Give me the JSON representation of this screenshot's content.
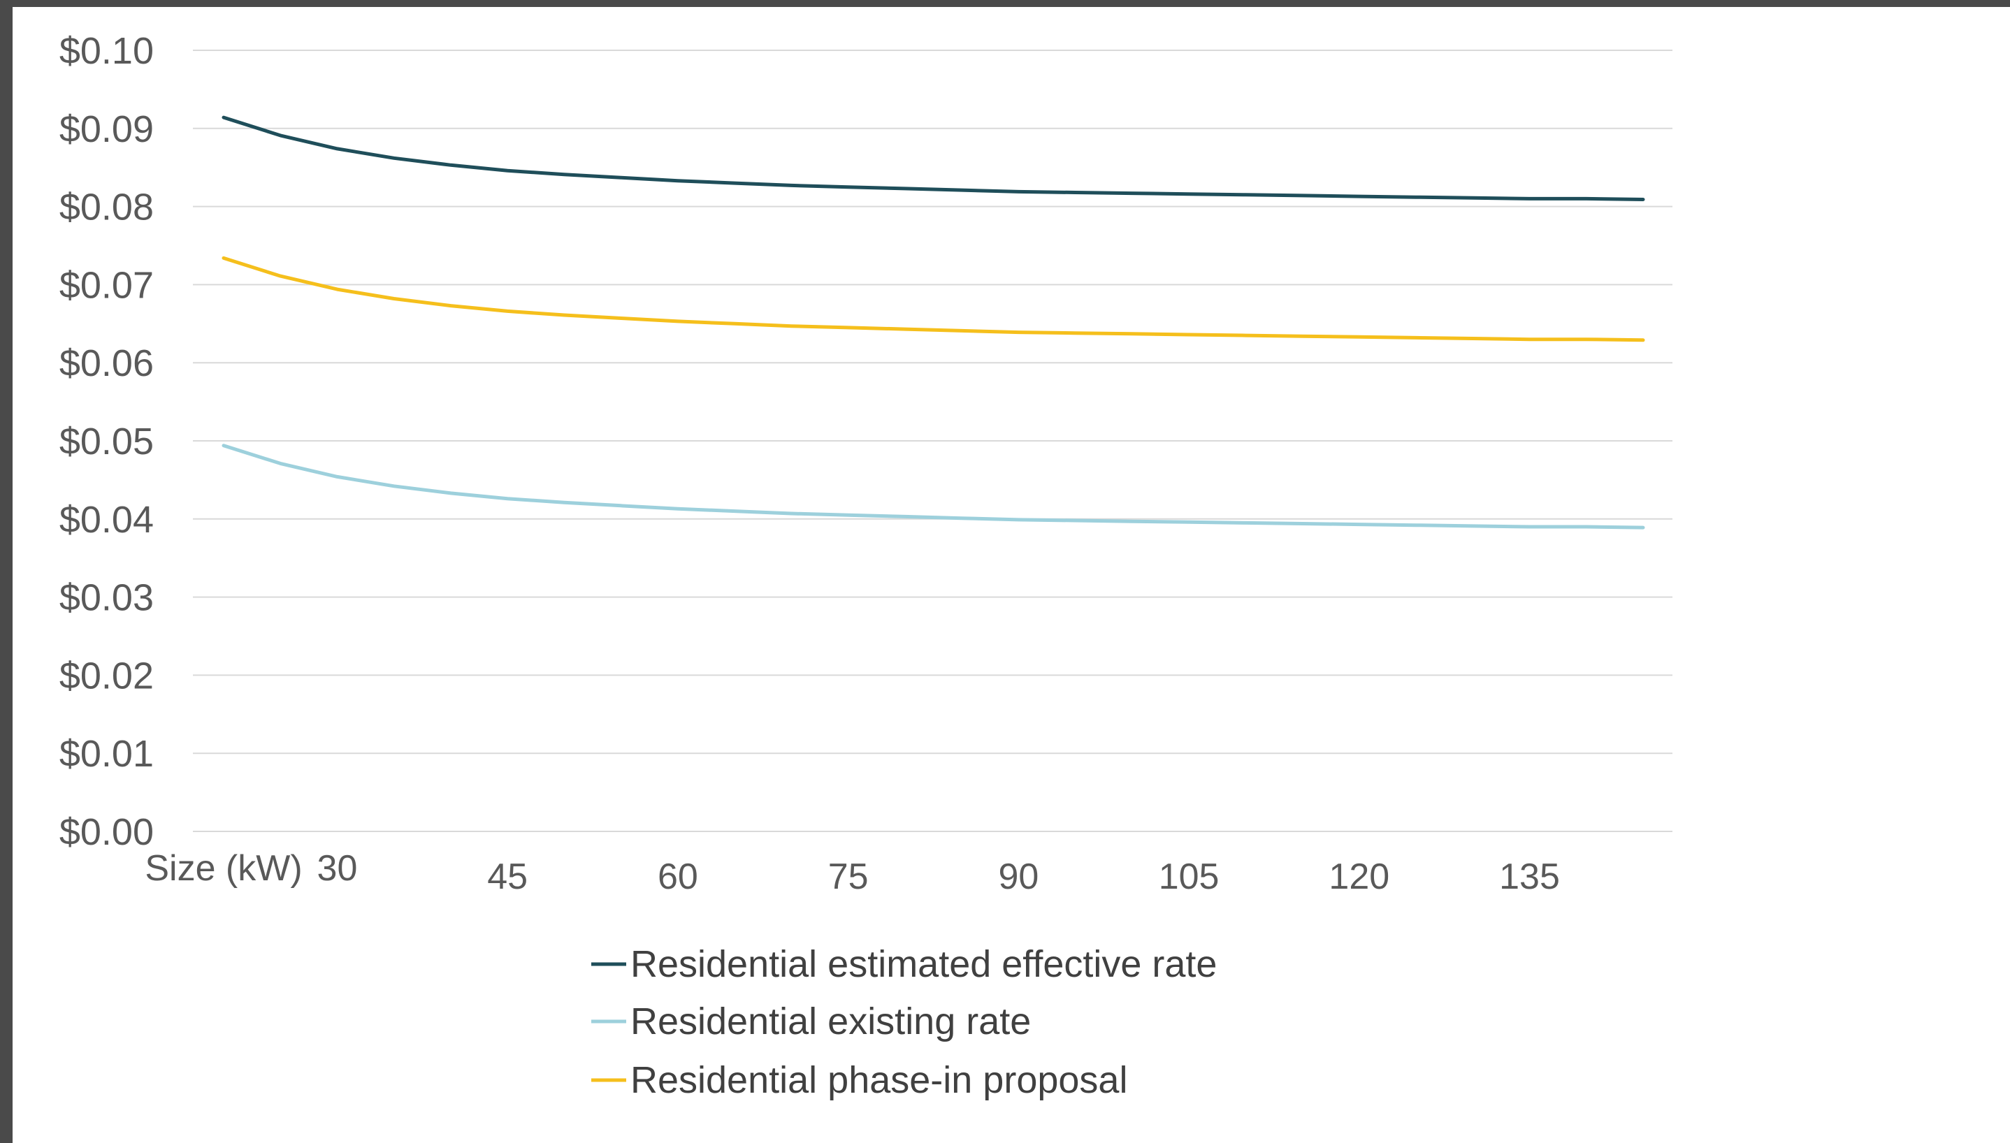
{
  "chart_data": {
    "type": "line",
    "title": "",
    "xlabel": "",
    "ylabel": "",
    "x_tick_labels": [
      "Size (kW)",
      "30",
      "45",
      "60",
      "75",
      "90",
      "105",
      "120",
      "135"
    ],
    "y_tick_labels": [
      "$0.00",
      "$0.01",
      "$0.02",
      "$0.03",
      "$0.04",
      "$0.05",
      "$0.06",
      "$0.07",
      "$0.08",
      "$0.09",
      "$0.10"
    ],
    "ylim": [
      0,
      0.1
    ],
    "grid": true,
    "legend_position": "bottom",
    "x": [
      20,
      25,
      30,
      35,
      40,
      45,
      50,
      55,
      60,
      65,
      70,
      75,
      80,
      85,
      90,
      95,
      100,
      105,
      110,
      115,
      120,
      125,
      130,
      135,
      140,
      145
    ],
    "series": [
      {
        "name": "Residential estimated effective rate",
        "color": "#1f4e5a",
        "values": [
          0.0914,
          0.0891,
          0.0874,
          0.0862,
          0.0853,
          0.0846,
          0.0841,
          0.0837,
          0.0833,
          0.083,
          0.0827,
          0.0825,
          0.0823,
          0.0821,
          0.0819,
          0.0818,
          0.0817,
          0.0816,
          0.0815,
          0.0814,
          0.0813,
          0.0812,
          0.0811,
          0.081,
          0.081,
          0.0809
        ]
      },
      {
        "name": "Residential existing rate",
        "color": "#9dd0dc",
        "values": [
          0.0494,
          0.0471,
          0.0454,
          0.0442,
          0.0433,
          0.0426,
          0.0421,
          0.0417,
          0.0413,
          0.041,
          0.0407,
          0.0405,
          0.0403,
          0.0401,
          0.0399,
          0.0398,
          0.0397,
          0.0396,
          0.0395,
          0.0394,
          0.0393,
          0.0392,
          0.0391,
          0.039,
          0.039,
          0.0389
        ]
      },
      {
        "name": "Residential phase-in proposal",
        "color": "#f5bf1c",
        "values": [
          0.0734,
          0.0711,
          0.0694,
          0.0682,
          0.0673,
          0.0666,
          0.0661,
          0.0657,
          0.0653,
          0.065,
          0.0647,
          0.0645,
          0.0643,
          0.0641,
          0.0639,
          0.0638,
          0.0637,
          0.0636,
          0.0635,
          0.0634,
          0.0633,
          0.0632,
          0.0631,
          0.063,
          0.063,
          0.0629
        ]
      }
    ],
    "gridline_color": "#d9d9d9"
  }
}
